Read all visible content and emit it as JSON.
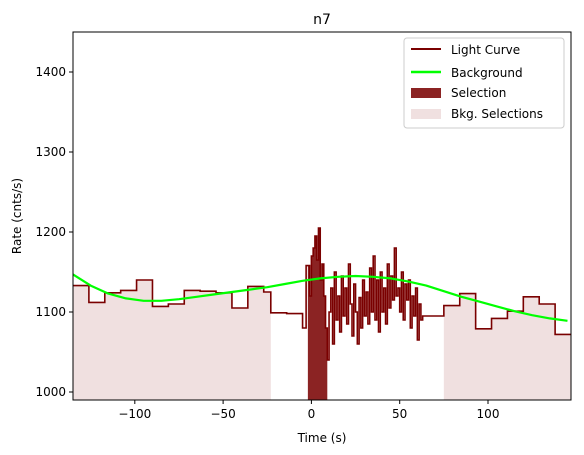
{
  "chart_data": {
    "type": "line",
    "title": "n7",
    "xlabel": "Time (s)",
    "ylabel": "Rate (cnts/s)",
    "xlim": [
      -135,
      147
    ],
    "ylim": [
      990,
      1450
    ],
    "xticks": [
      -100,
      -50,
      0,
      50,
      100
    ],
    "yticks": [
      1000,
      1100,
      1200,
      1300,
      1400
    ],
    "xtick_labels": [
      "−100",
      "−50",
      "0",
      "50",
      "100"
    ],
    "ytick_labels": [
      "1000",
      "1100",
      "1200",
      "1300",
      "1400"
    ],
    "grid": false,
    "legend": {
      "placement": "top-right",
      "entries": [
        {
          "label": "Light Curve",
          "kind": "line",
          "color": "#7a0000"
        },
        {
          "label": "Background",
          "kind": "line",
          "color": "#00ff00"
        },
        {
          "label": "Selection",
          "kind": "patch",
          "color": "#8b2323"
        },
        {
          "label": "Bkg. Selections",
          "kind": "patch",
          "color": "#f0e0e0"
        }
      ]
    },
    "colors": {
      "light_curve": "#7a0000",
      "background": "#00ff00",
      "selection": "#8b2323",
      "bkg_selection": "#f0e0e0"
    },
    "bkg_selections": [
      [
        -135,
        -23
      ],
      [
        75,
        147
      ]
    ],
    "selection": [
      -2,
      9
    ],
    "light_curve": {
      "bin_edges": [
        -135,
        -126,
        -117,
        -108,
        -99,
        -90,
        -81,
        -72,
        -63,
        -54,
        -45,
        -36,
        -27,
        -23,
        -14,
        -5,
        -3,
        -1,
        0,
        1,
        2,
        3,
        4,
        5,
        6,
        7,
        8,
        9,
        10,
        11,
        12,
        13,
        14,
        15,
        16,
        17,
        18,
        19,
        20,
        21,
        22,
        23,
        24,
        25,
        26,
        27,
        28,
        29,
        30,
        31,
        32,
        33,
        34,
        35,
        36,
        37,
        38,
        39,
        40,
        41,
        42,
        43,
        44,
        45,
        46,
        47,
        48,
        49,
        50,
        51,
        52,
        53,
        54,
        55,
        56,
        57,
        58,
        59,
        60,
        61,
        62,
        63,
        75,
        84,
        93,
        102,
        111,
        120,
        129,
        138,
        147
      ],
      "rates": [
        1133,
        1112,
        1124,
        1127,
        1140,
        1107,
        1110,
        1127,
        1126,
        1124,
        1105,
        1132,
        1125,
        1099,
        1098,
        1080,
        1158,
        1120,
        1170,
        1180,
        1195,
        1165,
        1205,
        1140,
        1160,
        1120,
        1080,
        1040,
        1100,
        1130,
        1060,
        1150,
        1090,
        1120,
        1075,
        1145,
        1095,
        1130,
        1085,
        1160,
        1110,
        1070,
        1135,
        1100,
        1060,
        1118,
        1080,
        1140,
        1095,
        1125,
        1085,
        1155,
        1100,
        1170,
        1090,
        1140,
        1075,
        1150,
        1100,
        1130,
        1085,
        1160,
        1105,
        1145,
        1115,
        1180,
        1120,
        1130,
        1100,
        1150,
        1090,
        1135,
        1115,
        1140,
        1080,
        1120,
        1095,
        1130,
        1065,
        1110,
        1090,
        1095,
        1108,
        1123,
        1079,
        1092,
        1101,
        1119,
        1110,
        1072
      ]
    },
    "background": {
      "x": [
        -135,
        -125,
        -115,
        -105,
        -95,
        -85,
        -75,
        -65,
        -55,
        -45,
        -35,
        -25,
        -15,
        -5,
        5,
        15,
        25,
        35,
        45,
        55,
        65,
        75,
        85,
        95,
        105,
        115,
        125,
        135,
        145
      ],
      "y": [
        1147,
        1133,
        1123,
        1117,
        1114,
        1114,
        1116,
        1119,
        1122,
        1125,
        1128,
        1131,
        1135,
        1139,
        1142,
        1144,
        1145,
        1144,
        1142,
        1138,
        1133,
        1126,
        1119,
        1113,
        1107,
        1101,
        1096,
        1092,
        1089
      ]
    }
  }
}
